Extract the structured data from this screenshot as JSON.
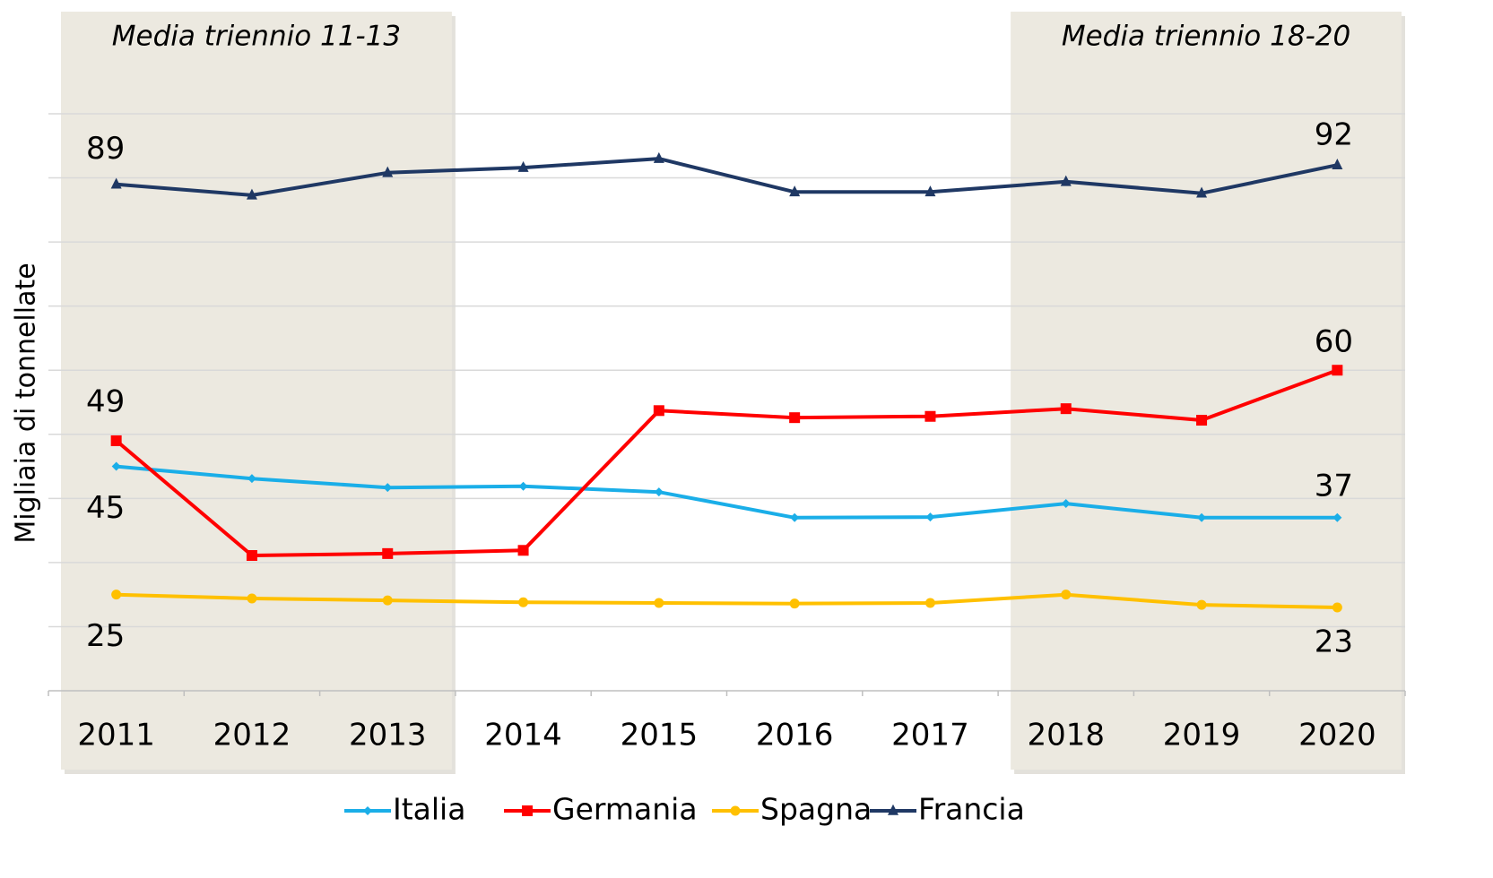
{
  "chart_data": {
    "type": "line",
    "y_label": "Migliaia di tonnellate",
    "categories": [
      "2011",
      "2012",
      "2013",
      "2014",
      "2015",
      "2016",
      "2017",
      "2018",
      "2019",
      "2020"
    ],
    "annotations": [
      {
        "text": "Media triennio 11-13",
        "from": "2011",
        "to": "2013"
      },
      {
        "text": "Media triennio 18-20",
        "from": "2018",
        "to": "2020"
      }
    ],
    "series": [
      {
        "name": "Italia",
        "color": "#1aaee8",
        "marker": "diamond",
        "values": [
          45,
          43.1,
          41.7,
          41.9,
          41.0,
          37.0,
          37.1,
          39.2,
          37.0,
          37
        ],
        "value_labels": [
          "45",
          null,
          null,
          null,
          null,
          null,
          null,
          null,
          null,
          "37"
        ]
      },
      {
        "name": "Germania",
        "color": "#ff0000",
        "marker": "square",
        "values": [
          49,
          31.1,
          31.4,
          31.9,
          53.7,
          52.6,
          52.8,
          54.0,
          52.2,
          60
        ],
        "value_labels": [
          "49",
          null,
          null,
          null,
          null,
          null,
          null,
          null,
          null,
          "60"
        ]
      },
      {
        "name": "Spagna",
        "color": "#ffc000",
        "marker": "circle",
        "values": [
          25,
          24.4,
          24.1,
          23.8,
          23.7,
          23.6,
          23.7,
          25.0,
          23.4,
          23
        ],
        "value_labels": [
          "25",
          null,
          null,
          null,
          null,
          null,
          null,
          null,
          null,
          "23"
        ]
      },
      {
        "name": "Francia",
        "color": "#1f3864",
        "marker": "triangle",
        "values": [
          89,
          87.3,
          90.8,
          91.6,
          93.0,
          87.8,
          87.8,
          89.4,
          87.6,
          92
        ],
        "value_labels": [
          "89",
          null,
          null,
          null,
          null,
          null,
          null,
          null,
          null,
          "92"
        ]
      }
    ],
    "ylim": [
      10,
      100
    ],
    "yticks": [
      10,
      20,
      30,
      40,
      50,
      60,
      70,
      80,
      90,
      100
    ],
    "grid": true,
    "legend": "bottom"
  }
}
